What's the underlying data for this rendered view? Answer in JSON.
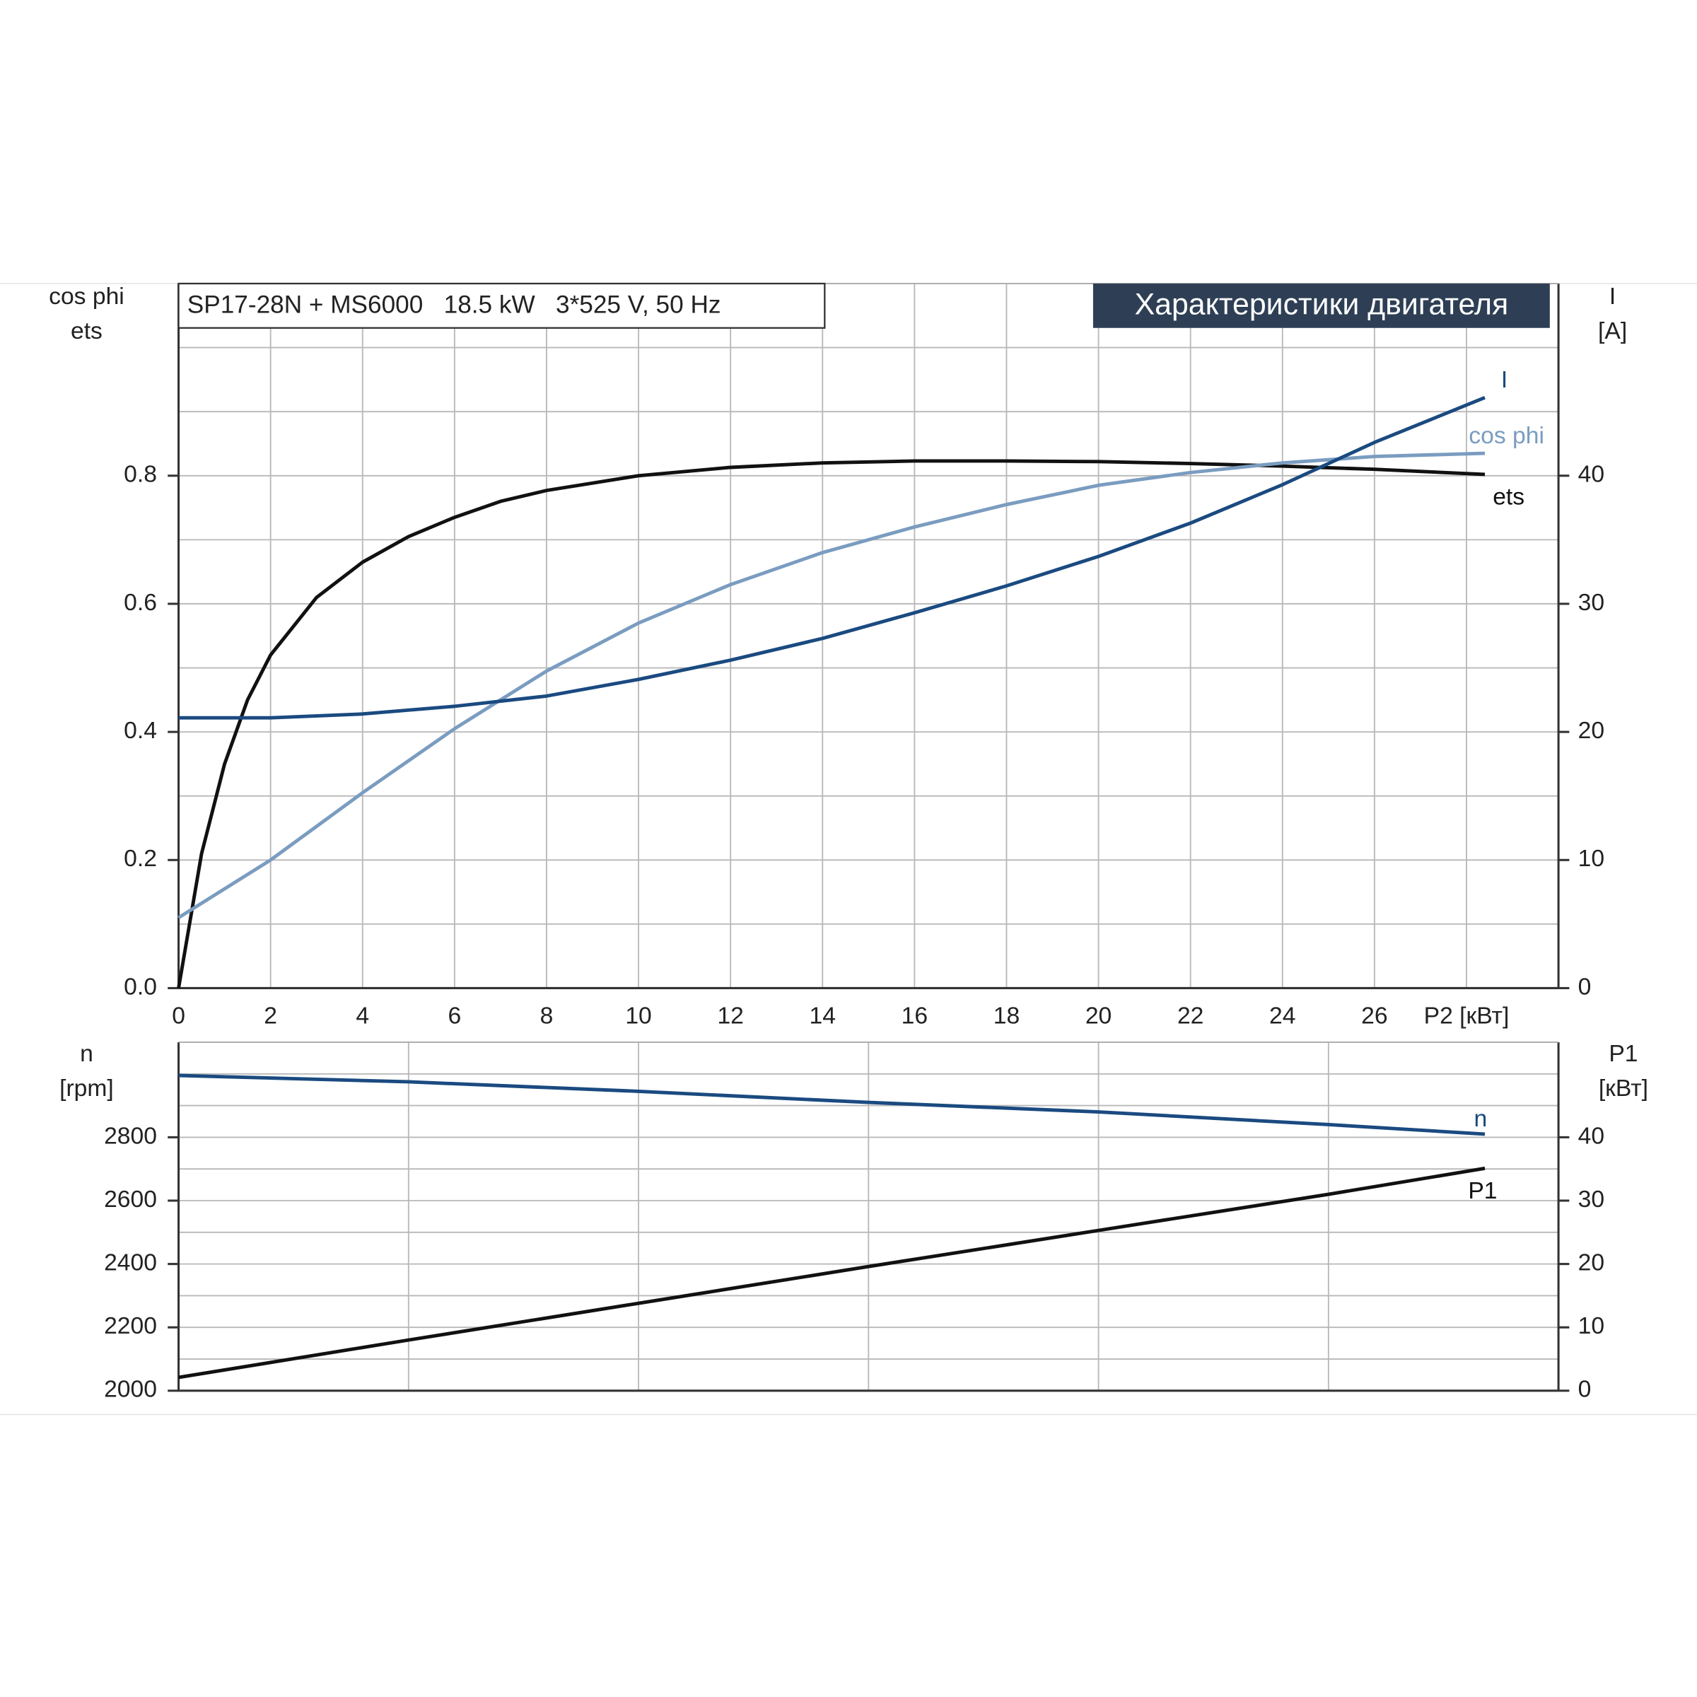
{
  "chart_data": [
    {
      "type": "line",
      "title": "SP17-28N + MS6000   18.5 kW   3*525 V, 50 Hz",
      "badge": "Характеристики двигателя",
      "y_axis_title": [
        "cos phi",
        "ets"
      ],
      "y2_axis_title": [
        "I",
        "[A]"
      ],
      "xlim": [
        0,
        30
      ],
      "xticks": [
        0,
        2,
        4,
        6,
        8,
        10,
        12,
        14,
        16,
        18,
        20,
        22,
        24,
        26,
        {
          "value": 28,
          "label": "P2 [кВт]"
        }
      ],
      "ylim": [
        0,
        1.1
      ],
      "yticks": [
        {
          "value": 0,
          "label": "0.0"
        },
        0.2,
        0.4,
        0.6,
        0.8
      ],
      "ygrid": [
        0.1,
        0.2,
        0.3,
        0.4,
        0.5,
        0.6,
        0.7,
        0.8,
        0.9,
        1.0
      ],
      "y2lim": [
        0,
        55
      ],
      "y2ticks": [
        0,
        10,
        20,
        30,
        40
      ],
      "grid": true,
      "series": [
        {
          "name": "ets",
          "color": "#111111",
          "x": [
            0,
            0.5,
            1,
            1.5,
            2,
            3,
            4,
            5,
            6,
            7,
            8,
            10,
            12,
            14,
            16,
            18,
            20,
            22,
            24,
            26,
            28.4
          ],
          "values": [
            0,
            0.21,
            0.35,
            0.45,
            0.52,
            0.61,
            0.665,
            0.705,
            0.735,
            0.76,
            0.777,
            0.8,
            0.813,
            0.82,
            0.823,
            0.823,
            0.822,
            0.819,
            0.815,
            0.81,
            0.802
          ]
        },
        {
          "name": "cos phi",
          "color": "#7a9cc0",
          "x": [
            0,
            2,
            4,
            6,
            8,
            10,
            12,
            14,
            16,
            18,
            20,
            22,
            24,
            26,
            28.4
          ],
          "values": [
            0.11,
            0.2,
            0.305,
            0.405,
            0.495,
            0.57,
            0.63,
            0.68,
            0.72,
            0.755,
            0.785,
            0.805,
            0.82,
            0.83,
            0.835
          ]
        },
        {
          "name": "I",
          "color": "#1a4a80",
          "axis": "y2",
          "x": [
            0,
            2,
            4,
            6,
            8,
            10,
            12,
            14,
            16,
            18,
            20,
            22,
            24,
            26,
            28.4
          ],
          "values": [
            21.1,
            21.1,
            21.4,
            22,
            22.8,
            24.1,
            25.6,
            27.3,
            29.3,
            31.4,
            33.7,
            36.3,
            39.3,
            42.6,
            46.1
          ]
        }
      ]
    },
    {
      "type": "line",
      "y_axis_title": [
        "n",
        "[rpm]"
      ],
      "y2_axis_title": [
        "P1",
        "[кВт]"
      ],
      "xlim": [
        0,
        30
      ],
      "xgrid": [
        5,
        10,
        15,
        20,
        25
      ],
      "ylim": [
        2000,
        3100
      ],
      "yticks": [
        2000,
        2200,
        2400,
        2600,
        2800
      ],
      "ygrid": [
        2100,
        2200,
        2300,
        2400,
        2500,
        2600,
        2700,
        2800,
        2900,
        3000
      ],
      "y2lim": [
        0,
        55
      ],
      "y2ticks": [
        0,
        10,
        20,
        30,
        40
      ],
      "grid": true,
      "series": [
        {
          "name": "n",
          "color": "#1a4a80",
          "x": [
            0,
            5,
            10,
            15,
            20,
            25,
            28.4
          ],
          "values": [
            2995,
            2975,
            2945,
            2910,
            2880,
            2840,
            2810
          ]
        },
        {
          "name": "P1",
          "color": "#111111",
          "axis": "y2",
          "x": [
            0,
            5,
            10,
            15,
            20,
            25,
            28.4
          ],
          "values": [
            2.1,
            8.0,
            13.8,
            19.6,
            25.3,
            31.0,
            35.1
          ]
        }
      ]
    }
  ]
}
